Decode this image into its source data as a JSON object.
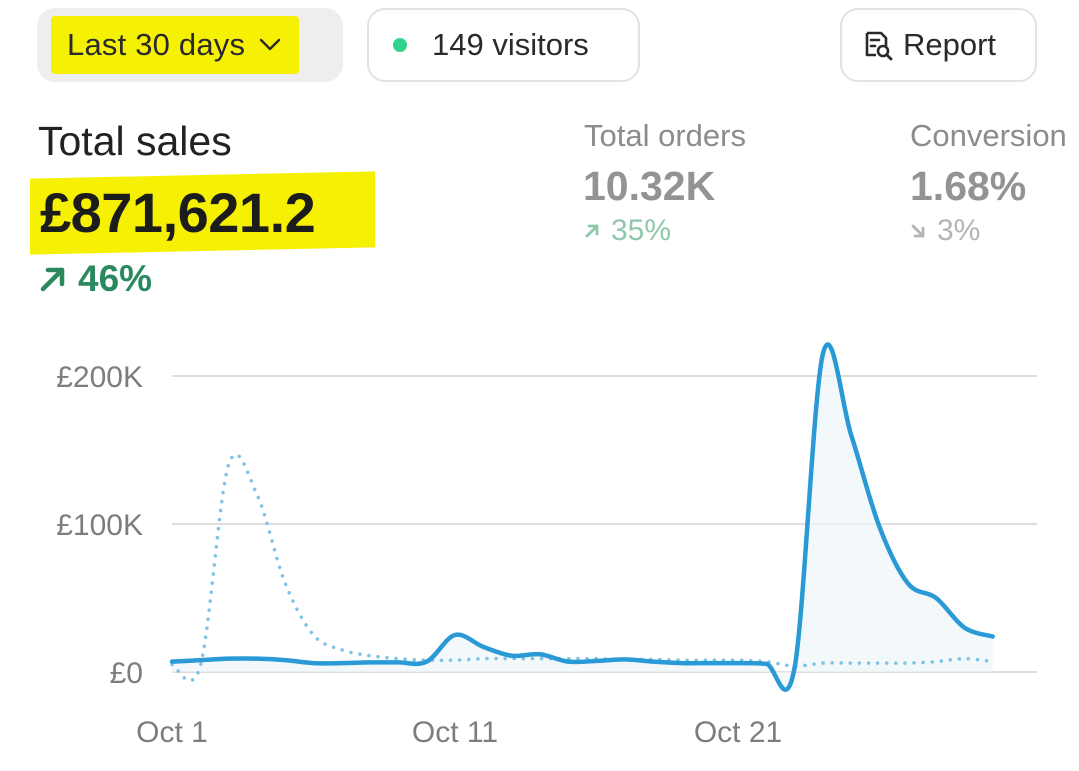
{
  "toolbar": {
    "range_label": "Last 30 days",
    "visitors_label": "149 visitors",
    "report_label": "Report"
  },
  "metrics": {
    "total_sales": {
      "label": "Total sales",
      "value": "£871,621.2",
      "change": "46%",
      "direction": "up"
    },
    "total_orders": {
      "label": "Total orders",
      "value": "10.32K",
      "change": "35%",
      "direction": "up"
    },
    "conversion": {
      "label": "Conversion",
      "value": "1.68%",
      "change": "3%",
      "direction": "down"
    }
  },
  "colors": {
    "highlight": "#f6f103",
    "visitors_dot": "#2fd58d",
    "positive": "#2a8a5e",
    "primary_line": "#2a9ad6",
    "comparison_line": "#7fc4e4"
  },
  "chart_data": {
    "type": "line",
    "y_ticks": [
      "£0",
      "£100K",
      "£200K"
    ],
    "x_ticks": [
      "Oct 1",
      "Oct 11",
      "Oct 21"
    ],
    "ylim": [
      0,
      200000
    ],
    "grid": true,
    "x": [
      1,
      2,
      3,
      4,
      5,
      6,
      7,
      8,
      9,
      10,
      11,
      12,
      13,
      14,
      15,
      16,
      17,
      18,
      19,
      20,
      21,
      22,
      23,
      24,
      25,
      26,
      27,
      28,
      29,
      30
    ],
    "series": [
      {
        "style": "solid",
        "values": [
          7000,
          8000,
          9000,
          9000,
          8000,
          6000,
          6000,
          6500,
          6500,
          7000,
          25000,
          17000,
          11000,
          12000,
          7000,
          7500,
          8500,
          7000,
          6000,
          6000,
          6000,
          5500,
          3000,
          215000,
          160000,
          98000,
          60000,
          50000,
          30000,
          24000
        ]
      },
      {
        "style": "dotted",
        "values": [
          5000,
          4000,
          140000,
          120000,
          60000,
          25000,
          15000,
          11000,
          9000,
          8000,
          8000,
          9000,
          9000,
          9000,
          9000,
          9000,
          8500,
          8500,
          8000,
          8000,
          8000,
          7000,
          4000,
          6000,
          6000,
          6000,
          6000,
          7000,
          9000,
          7000
        ]
      }
    ]
  }
}
